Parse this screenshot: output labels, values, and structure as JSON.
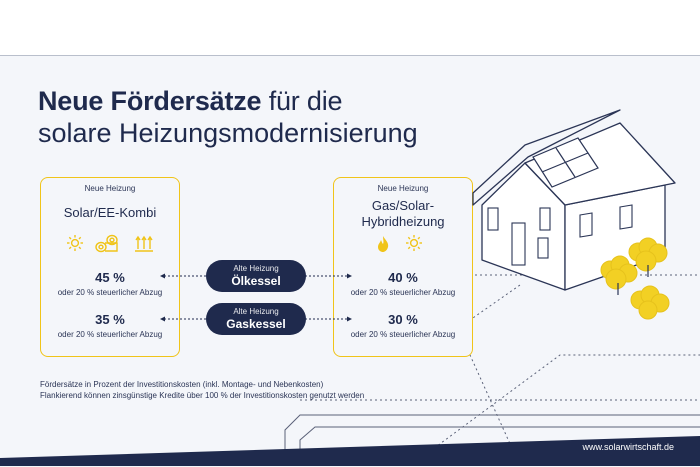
{
  "title": {
    "bold": "Neue Fördersätze",
    "rest": "für die",
    "line2": "solare Heizungsmodernisierung"
  },
  "left_box": {
    "caption": "Neue Heizung",
    "heading": "Solar/EE-Kombi",
    "rate_1": "45 %",
    "rate_1_note": "oder 20 % steuerlicher Abzug",
    "rate_2": "35 %",
    "rate_2_note": "oder 20 % steuerlicher Abzug"
  },
  "right_box": {
    "caption": "Neue Heizung",
    "heading_line1": "Gas/Solar-",
    "heading_line2": "Hybridheizung",
    "rate_1": "40 %",
    "rate_1_note": "oder 20 % steuerlicher Abzug",
    "rate_2": "30 %",
    "rate_2_note": "oder 20 % steuerlicher Abzug"
  },
  "old_heating": [
    {
      "caption": "Alte Heizung",
      "name": "Ölkessel"
    },
    {
      "caption": "Alte Heizung",
      "name": "Gaskessel"
    }
  ],
  "footnotes": {
    "line1": "Fördersätze in Prozent der Investitionskosten (inkl. Montage- und Nebenkosten)",
    "line2": "Flankierend können zinsgünstige Kredite über 100 % der Investitionskosten genutzt werden"
  },
  "footer_url": "www.solarwirtschaft.de",
  "icons": [
    "sun-icon",
    "wood-logs-icon",
    "heat-waves-icon",
    "flame-icon",
    "sun-icon"
  ],
  "colors": {
    "navy": "#1f2a4d",
    "yellow": "#f0c419",
    "tree": "#f2d024",
    "background": "#f4f6fa"
  }
}
